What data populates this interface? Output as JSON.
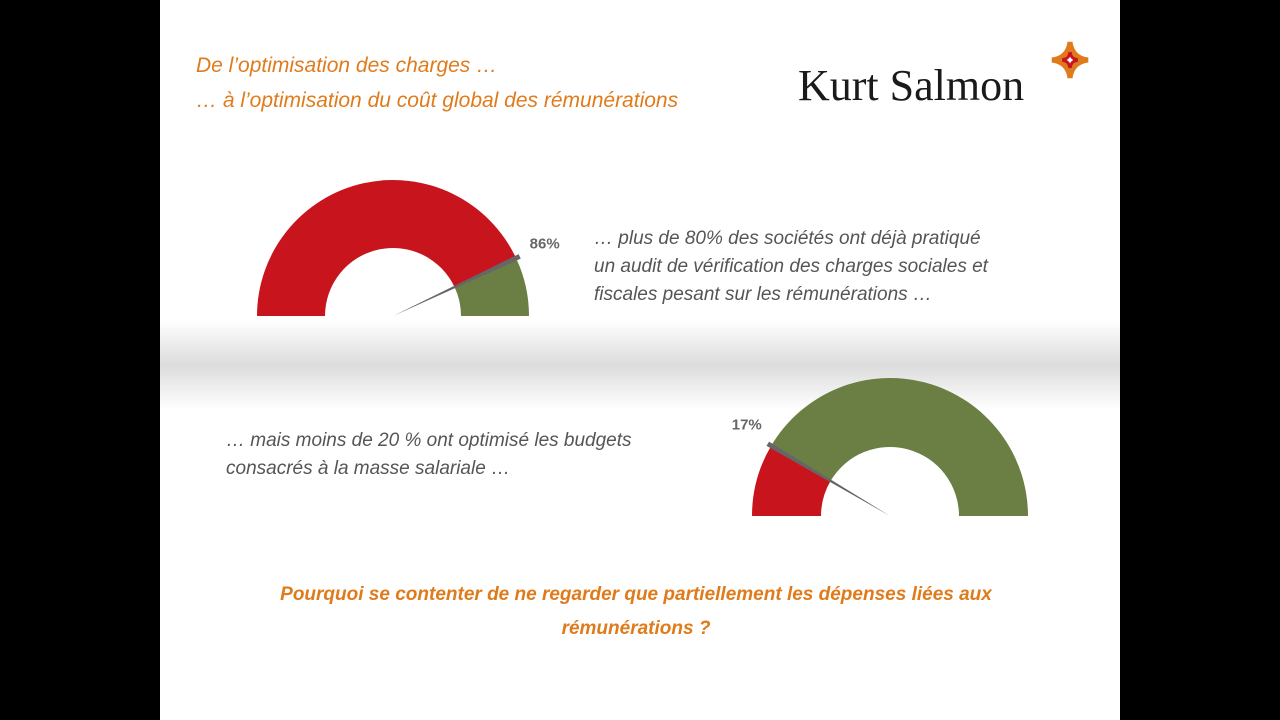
{
  "header": [
    "De l’optimisation des charges …",
    "… à l’optimisation du coût global des rémunérations"
  ],
  "logo": "Kurt Salmon",
  "chart_data": [
    {
      "type": "gauge",
      "values": [
        86
      ],
      "value_labels": [
        "86%"
      ],
      "ylim": [
        0,
        100
      ],
      "colors": [
        "#c8141c",
        "#6b7f45"
      ],
      "caption": [
        "… plus de 80% des sociétés ont déjà pratiqué",
        "un audit de vérification des charges sociales et",
        "fiscales pesant sur les rémunérations …"
      ]
    },
    {
      "type": "gauge",
      "values": [
        17
      ],
      "value_labels": [
        "17%"
      ],
      "ylim": [
        0,
        100
      ],
      "colors": [
        "#c8141c",
        "#6b7f45"
      ],
      "caption": [
        "… mais moins de 20 % ont optimisé les budgets",
        "consacrés à la masse salariale …"
      ]
    }
  ],
  "question": [
    "Pourquoi se contenter de ne regarder que partiellement les dépenses liées aux",
    "rémunérations ?"
  ]
}
